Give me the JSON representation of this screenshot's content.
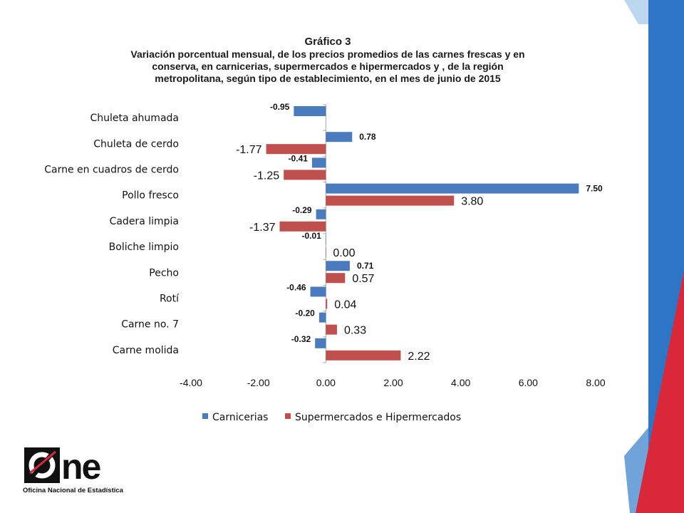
{
  "logo": {
    "wordmark": "One",
    "caption": "Oficina Nacional de Estadística"
  },
  "colors": {
    "carnicerias": "#4a7bbf",
    "supermercados": "#c0504d",
    "axis": "#a6a6a6",
    "deco_blue_light": "#bdd7ee",
    "deco_blue_mid": "#6fa3d9",
    "deco_blue": "#2e75c6",
    "deco_red": "#d9283a"
  },
  "chart_data": {
    "type": "bar",
    "orientation": "horizontal",
    "heading": "Gráfico 3",
    "title_lines": [
      "Variación porcentual mensual, de los precios promedios de las carnes frescas y en",
      "conserva, en carnicerias, supermercados e hipermercados y ,  de la región",
      "metropolitana,  según tipo de establecimiento, en el mes de  junio de 2015"
    ],
    "categories": [
      "Chuleta ahumada",
      "Chuleta de cerdo",
      "Carne en cuadros de cerdo",
      "Pollo fresco",
      "Cadera limpia",
      "Boliche limpio",
      "Pecho",
      "Rotí",
      "Carne no. 7",
      "Carne molida"
    ],
    "series": [
      {
        "name": "Carnicerias",
        "values": [
          -0.95,
          0.78,
          -0.41,
          7.5,
          -0.29,
          -0.01,
          0.71,
          -0.46,
          -0.2,
          -0.32
        ],
        "labels": [
          "-0.95",
          "0.78",
          "-0.41",
          "7.50",
          "-0.29",
          "-0.01",
          "0.71",
          "-0.46",
          "-0.20",
          "-0.32"
        ]
      },
      {
        "name": "Supermercados e Hipermercados",
        "values": [
          null,
          -1.77,
          -1.25,
          3.8,
          -1.37,
          0.0,
          0.57,
          0.04,
          0.33,
          2.22
        ],
        "labels": [
          "",
          "-1.77",
          "-1.25",
          "3.80",
          "-1.37",
          "0.00",
          "0.57",
          "0.04",
          "0.33",
          "2.22"
        ]
      }
    ],
    "xlim": [
      -4,
      8
    ],
    "xticks": [
      "-4.00",
      "-2.00",
      "0.00",
      "2.00",
      "4.00",
      "6.00",
      "8.00"
    ],
    "grid": false,
    "legend_position": "bottom"
  }
}
